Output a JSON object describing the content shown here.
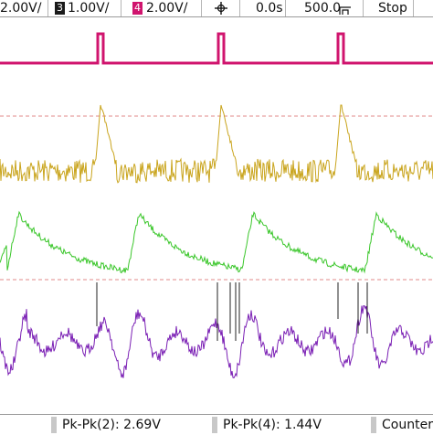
{
  "top_bar": {
    "ch_partial": "2.00V/",
    "ch3_number": "3",
    "ch3_scale": "1.00V/",
    "ch4_number": "4",
    "ch4_scale": "2.00V/",
    "trigger_icon": "trigger-position-icon",
    "time_delay": "0.0s",
    "time_scale": "500.0",
    "run_state": "Stop"
  },
  "measurements": {
    "m1": "Pk-Pk(2): 2.69V",
    "m2": "Pk-Pk(4): 1.44V",
    "m3": "Counter"
  },
  "traces": {
    "trace1_color": "#d0146e",
    "trace2_color": "#c9a41c",
    "trace3_color": "#39c629",
    "trace4_color": "#7a1fb4",
    "ref_line_color": "#e08888"
  }
}
